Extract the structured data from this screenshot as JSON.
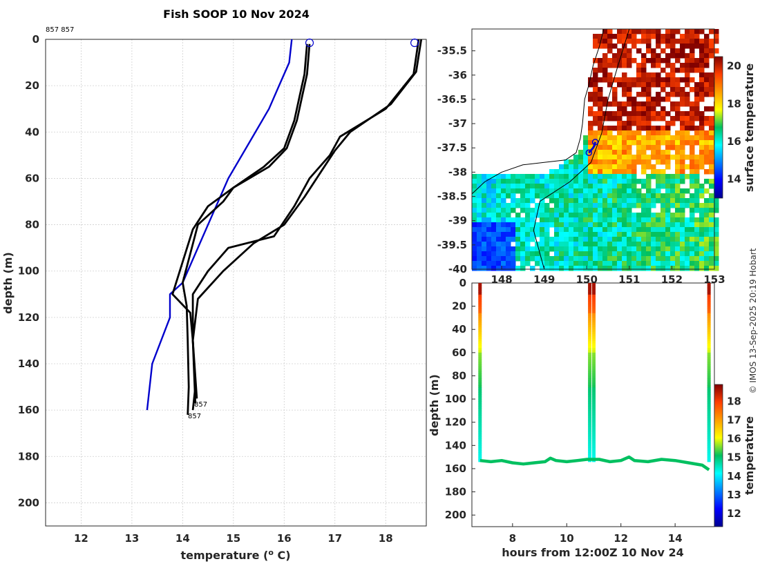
{
  "figure_title": "Fish SOOP 10 Nov 2024",
  "copyright": "© IMOS 13-Sep-2025 20:19 Hobart",
  "chart_data": [
    {
      "type": "line",
      "name": "profile",
      "title": "Fish SOOP 10 Nov 2024",
      "xlabel": "temperature (° C)",
      "ylabel": "depth (m)",
      "xlim": [
        11.3,
        18.8
      ],
      "ylim": [
        0,
        210
      ],
      "y_reversed": true,
      "xticks": [
        "12",
        "13",
        "14",
        "15",
        "16",
        "17",
        "18"
      ],
      "yticks": [
        "0",
        "20",
        "40",
        "60",
        "80",
        "100",
        "120",
        "140",
        "160",
        "180",
        "200"
      ],
      "grid": true,
      "top_labels": [
        "857",
        "857"
      ],
      "bottom_labels": [
        "857",
        "857"
      ],
      "series": [
        {
          "name": "climatology",
          "color": "#0000cc",
          "x": [
            16.15,
            16.1,
            15.9,
            15.7,
            15.3,
            14.9,
            14.6,
            14.3,
            14.0,
            13.75,
            13.75,
            13.4,
            13.3
          ],
          "y": [
            0,
            10,
            20,
            30,
            45,
            60,
            75,
            90,
            105,
            110,
            120,
            140,
            160
          ]
        },
        {
          "name": "profile-1",
          "color": "#000000",
          "x": [
            16.45,
            16.4,
            16.3,
            16.2,
            16.0,
            15.6,
            15.0,
            14.8,
            14.3,
            14.0,
            14.08,
            14.1,
            14.12,
            14.1
          ],
          "y": [
            2,
            15,
            25,
            35,
            47,
            55,
            64,
            70,
            80,
            105,
            115,
            130,
            150,
            162
          ]
        },
        {
          "name": "profile-2",
          "color": "#000000",
          "x": [
            16.5,
            16.45,
            16.35,
            16.25,
            16.05,
            15.7,
            15.0,
            14.5,
            14.2,
            13.8,
            14.15,
            14.2,
            14.25,
            14.2
          ],
          "y": [
            2,
            15,
            25,
            35,
            47,
            55,
            64,
            72,
            82,
            110,
            118,
            130,
            150,
            160
          ]
        },
        {
          "name": "profile-3",
          "color": "#000000",
          "x": [
            18.65,
            18.55,
            18.0,
            17.1,
            16.9,
            16.5,
            16.2,
            15.8,
            14.9,
            14.5,
            14.2,
            14.2,
            14.25
          ],
          "y": [
            0,
            15,
            30,
            42,
            50,
            60,
            72,
            85,
            90,
            100,
            110,
            130,
            157
          ]
        },
        {
          "name": "profile-4",
          "color": "#000000",
          "x": [
            18.7,
            18.6,
            18.1,
            17.3,
            17.0,
            16.7,
            16.4,
            16.0,
            15.4,
            14.8,
            14.3,
            14.2,
            14.28
          ],
          "y": [
            0,
            14,
            28,
            40,
            48,
            58,
            68,
            80,
            88,
            100,
            112,
            130,
            155
          ]
        }
      ],
      "markers": [
        {
          "x": 16.5,
          "y": 1.5
        },
        {
          "x": 18.57,
          "y": 1.5
        }
      ]
    },
    {
      "type": "heatmap",
      "name": "map",
      "xlabel": "",
      "ylabel": "",
      "xticks": [
        "148",
        "149",
        "150",
        "151",
        "152",
        "153"
      ],
      "yticks": [
        "-35.5",
        "-36",
        "-36.5",
        "-37",
        "-37.5",
        "-38",
        "-38.5",
        "-39",
        "-39.5",
        "-40"
      ],
      "xlim": [
        147.3,
        153.0
      ],
      "ylim": [
        -40.0,
        -35.05
      ],
      "colorbar": {
        "label": "surface temperature",
        "ticks": [
          "14",
          "16",
          "18",
          "20"
        ],
        "range": [
          13,
          20.5
        ]
      },
      "track": {
        "lon": [
          150.05,
          150.1,
          150.15,
          150.18,
          150.2
        ],
        "lat": [
          -37.6,
          -37.55,
          -37.5,
          -37.45,
          -37.38
        ]
      },
      "markers": [
        {
          "lon": 150.2,
          "lat": -37.38
        },
        {
          "lon": 150.05,
          "lat": -37.6
        }
      ]
    },
    {
      "type": "scatter",
      "name": "section",
      "xlabel": "hours from 12:00Z 10 Nov 24",
      "ylabel": "depth (m)",
      "xlim": [
        6.5,
        15.45
      ],
      "ylim": [
        0,
        210
      ],
      "y_reversed": true,
      "xticks": [
        "8",
        "10",
        "12",
        "14"
      ],
      "yticks": [
        "0",
        "20",
        "40",
        "60",
        "80",
        "100",
        "120",
        "140",
        "160",
        "180",
        "200"
      ],
      "colorbar": {
        "label": "temperature",
        "ticks": [
          "12",
          "13",
          "14",
          "15",
          "16",
          "17",
          "18"
        ],
        "range": [
          11.3,
          18.9
        ]
      },
      "bottom_track": {
        "hours": [
          6.8,
          7.2,
          7.6,
          8.0,
          8.4,
          8.8,
          9.2,
          9.4,
          9.6,
          10.0,
          10.4,
          10.75,
          11.2,
          11.6,
          12.0,
          12.3,
          12.5,
          13.0,
          13.5,
          14.0,
          14.5,
          15.0,
          15.25
        ],
        "depths": [
          153,
          154,
          153,
          155,
          156,
          155,
          154,
          151,
          153,
          154,
          153,
          152,
          152,
          154,
          153,
          150,
          153,
          154,
          152,
          153,
          155,
          157,
          161
        ]
      },
      "casts": [
        {
          "hours": 6.8
        },
        {
          "hours": 10.85
        },
        {
          "hours": 11.0
        },
        {
          "hours": 15.25
        }
      ]
    }
  ]
}
